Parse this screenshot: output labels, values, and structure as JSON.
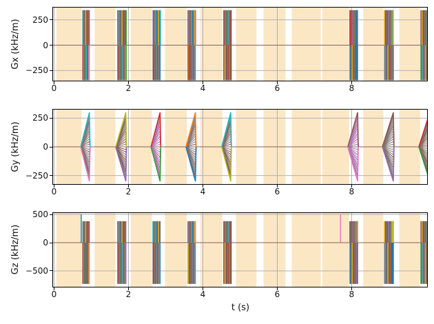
{
  "chart_data": {
    "type": "line",
    "description": "MRI pulse sequence gradient waveforms: three stacked subplots of gradient amplitude versus time with shaded acquisition spans and repeated gradient event blocks",
    "xlabel": "t (s)",
    "xlim": [
      -0.046,
      10.046
    ],
    "xticks": [
      {
        "v": 0,
        "label": "0"
      },
      {
        "v": 2,
        "label": "2"
      },
      {
        "v": 4,
        "label": "4"
      },
      {
        "v": 6,
        "label": "6"
      },
      {
        "v": 8,
        "label": "8"
      }
    ],
    "grid": true,
    "legend": false,
    "colors": {
      "background": "#ffffff",
      "span": "#fce7c5",
      "grid": "#b0b0b0",
      "spine": "#000000",
      "baseline": "#8c564b"
    },
    "shaded_spans_s": [
      [
        0.06,
        0.74
      ],
      [
        1.09,
        1.65
      ],
      [
        2.06,
        2.63
      ],
      [
        2.98,
        3.57
      ],
      [
        3.93,
        4.52
      ],
      [
        4.89,
        5.44
      ],
      [
        5.63,
        6.22
      ],
      [
        6.39,
        7.17
      ],
      [
        7.21,
        7.93
      ],
      [
        8.31,
        8.85
      ],
      [
        9.28,
        9.84
      ]
    ],
    "event_blocks_s": [
      [
        0.76,
        0.96
      ],
      [
        1.7,
        1.94
      ],
      [
        2.65,
        2.86
      ],
      [
        3.59,
        3.81
      ],
      [
        4.55,
        4.76
      ],
      [
        7.94,
        8.17
      ],
      [
        8.87,
        9.13
      ],
      [
        9.85,
        10.11
      ]
    ],
    "stripe_colors": [
      "#7f7f7f",
      "#8c564b",
      "#2ca02c",
      "#7f7f7f",
      "#d62728",
      "#17becf",
      "#636363",
      "#8c564b",
      "#ff7f0e",
      "#7f7f7f",
      "#1f77b4",
      "#8c564b",
      "#7f7f7f",
      "#bcbd22",
      "#9467bd",
      "#8c564b",
      "#7f7f7f"
    ],
    "fan_colors": [
      "#7f7f7f",
      "#9467bd",
      "#8c564b",
      "#7f7f7f",
      "#e377c2",
      "#8c564b",
      "#7f7f7f",
      "#9467bd",
      "#7f7f7f",
      "#8c564b",
      "#c49c94",
      "#7f7f7f"
    ],
    "subplots": [
      {
        "id": "gx",
        "ylabel": "Gx (kHz/m)",
        "ylim": [
          -356,
          377
        ],
        "yticks": [
          {
            "v": 250,
            "label": "250"
          },
          {
            "v": 0,
            "label": "0"
          },
          {
            "v": -250,
            "label": "−250"
          }
        ],
        "waveform": "block",
        "amp_top": 345,
        "amp_bot": -345,
        "accents": [
          [
            {
              "color": "#e377c2",
              "half": "lower",
              "fx": 0.88,
              "w": 1.6
            }
          ],
          [
            {
              "color": "#2ca02c",
              "half": "full",
              "fx": 1.0,
              "w": 1.4
            }
          ],
          [
            {
              "color": "#17becf",
              "half": "upper",
              "fx": 1.0,
              "w": 1.4
            },
            {
              "color": "#1f77b4",
              "half": "lower",
              "fx": 0.93,
              "w": 1.6
            }
          ],
          [
            {
              "color": "#e377c2",
              "half": "upper",
              "fx": 1.0,
              "w": 1.4
            },
            {
              "color": "#d62728",
              "half": "lower",
              "fx": 0.05,
              "w": 1.2
            }
          ],
          [
            {
              "color": "#d62728",
              "half": "full",
              "fx": 1.0,
              "w": 1.6
            }
          ],
          [
            {
              "color": "#1f77b4",
              "half": "full",
              "fx": 0.78,
              "w": 2.2
            },
            {
              "color": "#d62728",
              "half": "upper",
              "fx": 0.1,
              "w": 1.2
            }
          ],
          [
            {
              "color": "#bcbd22",
              "half": "upper",
              "fx": 0.92,
              "w": 1.8
            }
          ],
          [
            {
              "color": "#9467bd",
              "half": "full",
              "fx": 0.98,
              "w": 1.5
            }
          ]
        ]
      },
      {
        "id": "gy",
        "ylabel": "Gy (kHz/m)",
        "ylim": [
          -330,
          330
        ],
        "yticks": [
          {
            "v": 250,
            "label": "250"
          },
          {
            "v": 0,
            "label": "0"
          },
          {
            "v": -250,
            "label": "−250"
          }
        ],
        "waveform": "fan",
        "amp": 300,
        "fan_lines": 27,
        "accents_updown": [
          [
            "#17becf",
            "#e377c2"
          ],
          [
            "#bcbd22",
            "#9467bd"
          ],
          [
            "#d62728",
            "#2ca02c"
          ],
          [
            "#ff7f0e",
            "#1f77b4"
          ],
          [
            "#17becf",
            "#bcbd22"
          ],
          [
            "#8c564b",
            "#e377c2"
          ],
          [
            "#8c564b",
            "#9467bd"
          ],
          [
            "#d62728",
            "#2ca02c"
          ]
        ]
      },
      {
        "id": "gz",
        "ylabel": "Gz (kHz/m)",
        "ylim": [
          -793,
          537
        ],
        "yticks": [
          {
            "v": 500,
            "label": "500"
          },
          {
            "v": 0,
            "label": "0"
          },
          {
            "v": -500,
            "label": "−500"
          }
        ],
        "waveform": "block",
        "amp_top": 380,
        "amp_bot": -730,
        "accents": [
          [
            {
              "color": "#d62728",
              "half": "lower",
              "fx": 0.5,
              "w": 1.2
            }
          ],
          [
            {
              "color": "#9467bd",
              "half": "lower",
              "fx": 0.95,
              "w": 1.8
            }
          ],
          [
            {
              "color": "#17becf",
              "half": "upper",
              "fx": 0.03,
              "w": 1.3
            }
          ],
          [
            {
              "color": "#e377c2",
              "half": "upper",
              "fx": 0.96,
              "w": 1.5
            }
          ],
          [
            {
              "color": "#d62728",
              "half": "full",
              "fx": 1.0,
              "w": 1.5
            }
          ],
          [
            {
              "color": "#ff7f0e",
              "half": "upper",
              "fx": 0.9,
              "w": 2.0
            }
          ],
          [
            {
              "color": "#bcbd22",
              "half": "upper",
              "fx": 0.88,
              "w": 2.6
            },
            {
              "color": "#1f77b4",
              "half": "lower",
              "fx": 0.88,
              "w": 3.5
            }
          ],
          [
            {
              "color": "#d62728",
              "half": "full",
              "fx": 0.9,
              "w": 1.5
            }
          ]
        ],
        "spikes": [
          {
            "t": 0.73,
            "amp": 500,
            "color": "#1f77b4"
          },
          {
            "t": 7.7,
            "amp": 500,
            "color": "#e377c2"
          }
        ]
      }
    ]
  }
}
